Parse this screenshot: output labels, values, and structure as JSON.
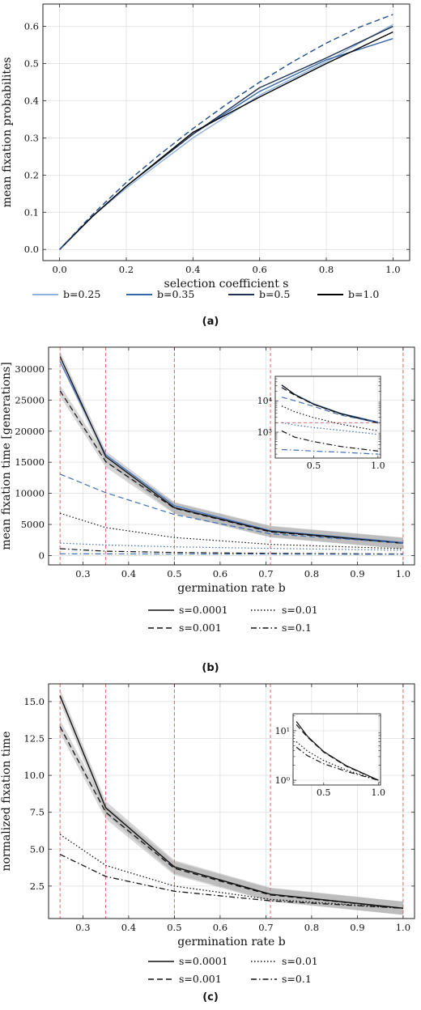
{
  "chart_data": [
    {
      "type": "line",
      "panel_label": "(a)",
      "xlabel": "selection coefficient s",
      "ylabel": "mean fixation probabilites",
      "xlim": [
        -0.05,
        1.05
      ],
      "ylim": [
        -0.03,
        0.66
      ],
      "xticks": [
        0.0,
        0.2,
        0.4,
        0.6,
        0.8,
        1.0
      ],
      "xtick_labels": [
        "0.0",
        "0.2",
        "0.4",
        "0.6",
        "0.8",
        "1.0"
      ],
      "yticks": [
        0.0,
        0.1,
        0.2,
        0.3,
        0.4,
        0.5,
        0.6
      ],
      "ytick_labels": [
        "0.0",
        "0.1",
        "0.2",
        "0.3",
        "0.4",
        "0.5",
        "0.6"
      ],
      "grid": true,
      "legend_position": "bottom",
      "series": [
        {
          "name": "b=0.25",
          "color": "#8fb1e0",
          "dash": "solid",
          "x": [
            0,
            0.05,
            0.1,
            0.2,
            0.4,
            0.6,
            0.8,
            1.0
          ],
          "y": [
            0,
            0.045,
            0.09,
            0.165,
            0.3,
            0.415,
            0.505,
            0.605
          ]
        },
        {
          "name": "b=0.35",
          "color": "#3567a8",
          "dash": "solid",
          "x": [
            0,
            0.05,
            0.1,
            0.2,
            0.4,
            0.6,
            0.8,
            1.0
          ],
          "y": [
            0,
            0.045,
            0.09,
            0.17,
            0.31,
            0.425,
            0.51,
            0.567
          ]
        },
        {
          "name": "b=0.5",
          "color": "#1f3350",
          "dash": "solid",
          "x": [
            0,
            0.05,
            0.1,
            0.2,
            0.4,
            0.6,
            0.8,
            1.0
          ],
          "y": [
            0,
            0.045,
            0.09,
            0.17,
            0.31,
            0.435,
            0.515,
            0.6
          ]
        },
        {
          "name": "b=1.0",
          "color": "#000000",
          "dash": "solid",
          "x": [
            0,
            0.05,
            0.1,
            0.2,
            0.4,
            0.6,
            0.8,
            1.0
          ],
          "y": [
            0,
            0.045,
            0.09,
            0.17,
            0.315,
            0.41,
            0.5,
            0.585
          ]
        },
        {
          "name": "",
          "color": "#1f4e8c",
          "dash": "dashed",
          "x": [
            0,
            0.05,
            0.1,
            0.2,
            0.3,
            0.4,
            0.5,
            0.6,
            0.7,
            0.8,
            0.9,
            1.0
          ],
          "y": [
            0,
            0.048,
            0.095,
            0.18,
            0.255,
            0.325,
            0.39,
            0.45,
            0.505,
            0.555,
            0.598,
            0.632
          ]
        }
      ]
    },
    {
      "type": "line",
      "panel_label": "(b)",
      "xlabel": "germination rate b",
      "ylabel": "mean fixation time [generations]",
      "xlim": [
        0.225,
        1.025
      ],
      "ylim": [
        -1500,
        33500
      ],
      "xticks": [
        0.3,
        0.4,
        0.5,
        0.6,
        0.7,
        0.8,
        0.9,
        1.0
      ],
      "xtick_labels": [
        "0.3",
        "0.4",
        "0.5",
        "0.6",
        "0.7",
        "0.8",
        "0.9",
        "1.0"
      ],
      "yticks": [
        0,
        5000,
        10000,
        15000,
        20000,
        25000,
        30000
      ],
      "ytick_labels": [
        "0",
        "5000",
        "10000",
        "15000",
        "20000",
        "25000",
        "30000"
      ],
      "vlines": [
        0.25,
        0.35,
        0.5,
        0.71,
        1.0
      ],
      "grid": true,
      "legend_position": "bottom",
      "legend": [
        {
          "name": "s=0.0001",
          "dash": "solid"
        },
        {
          "name": "s=0.01",
          "dash": "dotted"
        },
        {
          "name": "s=0.001",
          "dash": "dashed"
        },
        {
          "name": "s=0.1",
          "dash": "dashdot"
        }
      ],
      "series": [
        {
          "color": "#4a78c0",
          "dash": "solid",
          "width": 1.4,
          "x": [
            0.25,
            0.35,
            0.5,
            0.71,
            1.0
          ],
          "y": [
            31200,
            16200,
            8000,
            4000,
            2100
          ]
        },
        {
          "color": "#111111",
          "dash": "solid",
          "width": 1.3,
          "band": 900,
          "x": [
            0.25,
            0.35,
            0.5,
            0.71,
            1.0
          ],
          "y": [
            32000,
            15900,
            7700,
            3900,
            2000
          ]
        },
        {
          "color": "#111111",
          "dash": "dashed",
          "width": 1.2,
          "band": 900,
          "x": [
            0.25,
            0.35,
            0.5,
            0.71,
            1.0
          ],
          "y": [
            26500,
            15100,
            7600,
            3800,
            1950
          ]
        },
        {
          "color": "#3f6fb5",
          "dash": "dashed",
          "width": 1.2,
          "x": [
            0.25,
            0.35,
            0.5,
            0.71,
            1.0
          ],
          "y": [
            13100,
            10100,
            6600,
            3500,
            2000
          ]
        },
        {
          "color": "#111111",
          "dash": "dotted",
          "width": 1.2,
          "x": [
            0.25,
            0.35,
            0.5,
            0.71,
            1.0
          ],
          "y": [
            6800,
            4500,
            2900,
            1800,
            1100
          ]
        },
        {
          "color": "#3f6fb5",
          "dash": "dotted",
          "width": 1.2,
          "x": [
            0.25,
            0.35,
            0.5,
            0.71,
            1.0
          ],
          "y": [
            2000,
            1700,
            1400,
            1150,
            850
          ]
        },
        {
          "color": "#111111",
          "dash": "dashdot",
          "width": 1.2,
          "x": [
            0.25,
            0.35,
            0.5,
            0.71,
            1.0
          ],
          "y": [
            1100,
            700,
            500,
            350,
            250
          ]
        },
        {
          "color": "#3f6fb5",
          "dash": "dashdot",
          "width": 1.2,
          "x": [
            0.25,
            0.35,
            0.5,
            0.71,
            1.0
          ],
          "y": [
            280,
            270,
            250,
            230,
            200
          ]
        }
      ],
      "inset": {
        "scale": "log",
        "xlim": [
          0.2,
          1.02
        ],
        "ylim": [
          150,
          60000
        ],
        "xticks": [
          0.5,
          1.0
        ],
        "xtick_labels": [
          "0.5",
          "1.0"
        ],
        "yticks": [
          1000,
          10000
        ],
        "ytick_labels": [
          "10³",
          "10⁴"
        ],
        "hline": 2000,
        "series": [
          {
            "color": "#4a78c0",
            "dash": "solid",
            "x": [
              0.25,
              0.35,
              0.5,
              0.71,
              1.0
            ],
            "y": [
              31200,
              16200,
              8000,
              4000,
              2100
            ]
          },
          {
            "color": "#111111",
            "dash": "solid",
            "x": [
              0.25,
              0.35,
              0.5,
              0.71,
              1.0
            ],
            "y": [
              32000,
              15900,
              7700,
              3900,
              2000
            ]
          },
          {
            "color": "#111111",
            "dash": "dashed",
            "x": [
              0.25,
              0.35,
              0.5,
              0.71,
              1.0
            ],
            "y": [
              26500,
              15100,
              7600,
              3800,
              1950
            ]
          },
          {
            "color": "#3f6fb5",
            "dash": "dashed",
            "x": [
              0.25,
              0.35,
              0.5,
              0.71,
              1.0
            ],
            "y": [
              13100,
              10100,
              6600,
              3500,
              2000
            ]
          },
          {
            "color": "#111111",
            "dash": "dotted",
            "x": [
              0.25,
              0.35,
              0.5,
              0.71,
              1.0
            ],
            "y": [
              6800,
              4500,
              2900,
              1800,
              1100
            ]
          },
          {
            "color": "#3f6fb5",
            "dash": "dotted",
            "x": [
              0.25,
              0.35,
              0.5,
              0.71,
              1.0
            ],
            "y": [
              2000,
              1700,
              1400,
              1150,
              850
            ]
          },
          {
            "color": "#111111",
            "dash": "dashdot",
            "x": [
              0.25,
              0.35,
              0.5,
              0.71,
              1.0
            ],
            "y": [
              1100,
              700,
              500,
              350,
              250
            ]
          },
          {
            "color": "#3f6fb5",
            "dash": "dashdot",
            "x": [
              0.25,
              0.35,
              0.5,
              0.71,
              1.0
            ],
            "y": [
              280,
              270,
              250,
              230,
              200
            ]
          }
        ]
      }
    },
    {
      "type": "line",
      "panel_label": "(c)",
      "xlabel": "germination rate b",
      "ylabel": "normalized fixation time",
      "xlim": [
        0.225,
        1.025
      ],
      "ylim": [
        0.3,
        16.2
      ],
      "xticks": [
        0.3,
        0.4,
        0.5,
        0.6,
        0.7,
        0.8,
        0.9,
        1.0
      ],
      "xtick_labels": [
        "0.3",
        "0.4",
        "0.5",
        "0.6",
        "0.7",
        "0.8",
        "0.9",
        "1.0"
      ],
      "yticks": [
        2.5,
        5.0,
        7.5,
        10.0,
        12.5,
        15.0
      ],
      "ytick_labels": [
        "2.5",
        "5.0",
        "7.5",
        "10.0",
        "12.5",
        "15.0"
      ],
      "vlines": [
        0.25,
        0.35,
        0.5,
        0.71,
        1.0
      ],
      "grid": true,
      "legend_position": "bottom",
      "legend": [
        {
          "name": "s=0.0001",
          "dash": "solid"
        },
        {
          "name": "s=0.01",
          "dash": "dotted"
        },
        {
          "name": "s=0.001",
          "dash": "dashed"
        },
        {
          "name": "s=0.1",
          "dash": "dashdot"
        }
      ],
      "series": [
        {
          "color": "#111111",
          "dash": "solid",
          "width": 1.4,
          "band": 0.45,
          "x": [
            0.25,
            0.35,
            0.5,
            0.71,
            1.0
          ],
          "y": [
            15.4,
            7.8,
            3.8,
            1.95,
            1.0
          ]
        },
        {
          "color": "#111111",
          "dash": "dashed",
          "width": 1.3,
          "band": 0.45,
          "x": [
            0.25,
            0.35,
            0.5,
            0.71,
            1.0
          ],
          "y": [
            13.3,
            7.5,
            3.7,
            1.9,
            1.0
          ]
        },
        {
          "color": "#111111",
          "dash": "dotted",
          "width": 1.3,
          "x": [
            0.25,
            0.35,
            0.5,
            0.71,
            1.0
          ],
          "y": [
            6.0,
            3.9,
            2.5,
            1.6,
            1.0
          ]
        },
        {
          "color": "#111111",
          "dash": "dashdot",
          "width": 1.3,
          "x": [
            0.25,
            0.35,
            0.5,
            0.71,
            1.0
          ],
          "y": [
            4.65,
            3.15,
            2.15,
            1.5,
            1.0
          ]
        }
      ],
      "inset": {
        "scale": "log",
        "xlim": [
          0.22,
          1.02
        ],
        "ylim": [
          0.8,
          22
        ],
        "xticks": [
          0.5,
          1.0
        ],
        "xtick_labels": [
          "0.5",
          "1.0"
        ],
        "yticks": [
          1,
          10
        ],
        "ytick_labels": [
          "10⁰",
          "10¹"
        ],
        "series": [
          {
            "color": "#111111",
            "dash": "solid",
            "x": [
              0.25,
              0.35,
              0.5,
              0.71,
              1.0
            ],
            "y": [
              15.4,
              7.8,
              3.8,
              1.95,
              1.0
            ]
          },
          {
            "color": "#111111",
            "dash": "dashed",
            "x": [
              0.25,
              0.35,
              0.5,
              0.71,
              1.0
            ],
            "y": [
              13.3,
              7.5,
              3.7,
              1.9,
              1.0
            ]
          },
          {
            "color": "#111111",
            "dash": "dotted",
            "x": [
              0.25,
              0.35,
              0.5,
              0.71,
              1.0
            ],
            "y": [
              6.0,
              3.9,
              2.5,
              1.6,
              1.0
            ]
          },
          {
            "color": "#111111",
            "dash": "dashdot",
            "x": [
              0.25,
              0.35,
              0.5,
              0.71,
              1.0
            ],
            "y": [
              4.65,
              3.15,
              2.15,
              1.5,
              1.0
            ]
          }
        ]
      }
    }
  ]
}
